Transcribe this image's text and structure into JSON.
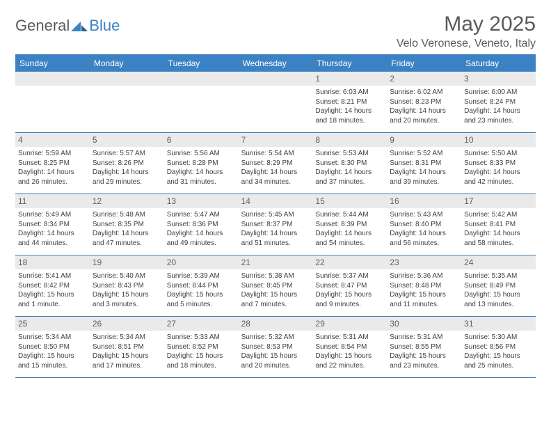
{
  "logo": {
    "general": "General",
    "blue": "Blue"
  },
  "title": "May 2025",
  "location": "Velo Veronese, Veneto, Italy",
  "header_bg": "#3b82c4",
  "border_color": "#3b7ab5",
  "daynum_bg": "#eaeaea",
  "text_color": "#404040",
  "weekdays": [
    "Sunday",
    "Monday",
    "Tuesday",
    "Wednesday",
    "Thursday",
    "Friday",
    "Saturday"
  ],
  "lead_blanks": 4,
  "days": [
    {
      "n": "1",
      "sr": "Sunrise: 6:03 AM",
      "ss": "Sunset: 8:21 PM",
      "d1": "Daylight: 14 hours",
      "d2": "and 18 minutes."
    },
    {
      "n": "2",
      "sr": "Sunrise: 6:02 AM",
      "ss": "Sunset: 8:23 PM",
      "d1": "Daylight: 14 hours",
      "d2": "and 20 minutes."
    },
    {
      "n": "3",
      "sr": "Sunrise: 6:00 AM",
      "ss": "Sunset: 8:24 PM",
      "d1": "Daylight: 14 hours",
      "d2": "and 23 minutes."
    },
    {
      "n": "4",
      "sr": "Sunrise: 5:59 AM",
      "ss": "Sunset: 8:25 PM",
      "d1": "Daylight: 14 hours",
      "d2": "and 26 minutes."
    },
    {
      "n": "5",
      "sr": "Sunrise: 5:57 AM",
      "ss": "Sunset: 8:26 PM",
      "d1": "Daylight: 14 hours",
      "d2": "and 29 minutes."
    },
    {
      "n": "6",
      "sr": "Sunrise: 5:56 AM",
      "ss": "Sunset: 8:28 PM",
      "d1": "Daylight: 14 hours",
      "d2": "and 31 minutes."
    },
    {
      "n": "7",
      "sr": "Sunrise: 5:54 AM",
      "ss": "Sunset: 8:29 PM",
      "d1": "Daylight: 14 hours",
      "d2": "and 34 minutes."
    },
    {
      "n": "8",
      "sr": "Sunrise: 5:53 AM",
      "ss": "Sunset: 8:30 PM",
      "d1": "Daylight: 14 hours",
      "d2": "and 37 minutes."
    },
    {
      "n": "9",
      "sr": "Sunrise: 5:52 AM",
      "ss": "Sunset: 8:31 PM",
      "d1": "Daylight: 14 hours",
      "d2": "and 39 minutes."
    },
    {
      "n": "10",
      "sr": "Sunrise: 5:50 AM",
      "ss": "Sunset: 8:33 PM",
      "d1": "Daylight: 14 hours",
      "d2": "and 42 minutes."
    },
    {
      "n": "11",
      "sr": "Sunrise: 5:49 AM",
      "ss": "Sunset: 8:34 PM",
      "d1": "Daylight: 14 hours",
      "d2": "and 44 minutes."
    },
    {
      "n": "12",
      "sr": "Sunrise: 5:48 AM",
      "ss": "Sunset: 8:35 PM",
      "d1": "Daylight: 14 hours",
      "d2": "and 47 minutes."
    },
    {
      "n": "13",
      "sr": "Sunrise: 5:47 AM",
      "ss": "Sunset: 8:36 PM",
      "d1": "Daylight: 14 hours",
      "d2": "and 49 minutes."
    },
    {
      "n": "14",
      "sr": "Sunrise: 5:45 AM",
      "ss": "Sunset: 8:37 PM",
      "d1": "Daylight: 14 hours",
      "d2": "and 51 minutes."
    },
    {
      "n": "15",
      "sr": "Sunrise: 5:44 AM",
      "ss": "Sunset: 8:39 PM",
      "d1": "Daylight: 14 hours",
      "d2": "and 54 minutes."
    },
    {
      "n": "16",
      "sr": "Sunrise: 5:43 AM",
      "ss": "Sunset: 8:40 PM",
      "d1": "Daylight: 14 hours",
      "d2": "and 56 minutes."
    },
    {
      "n": "17",
      "sr": "Sunrise: 5:42 AM",
      "ss": "Sunset: 8:41 PM",
      "d1": "Daylight: 14 hours",
      "d2": "and 58 minutes."
    },
    {
      "n": "18",
      "sr": "Sunrise: 5:41 AM",
      "ss": "Sunset: 8:42 PM",
      "d1": "Daylight: 15 hours",
      "d2": "and 1 minute."
    },
    {
      "n": "19",
      "sr": "Sunrise: 5:40 AM",
      "ss": "Sunset: 8:43 PM",
      "d1": "Daylight: 15 hours",
      "d2": "and 3 minutes."
    },
    {
      "n": "20",
      "sr": "Sunrise: 5:39 AM",
      "ss": "Sunset: 8:44 PM",
      "d1": "Daylight: 15 hours",
      "d2": "and 5 minutes."
    },
    {
      "n": "21",
      "sr": "Sunrise: 5:38 AM",
      "ss": "Sunset: 8:45 PM",
      "d1": "Daylight: 15 hours",
      "d2": "and 7 minutes."
    },
    {
      "n": "22",
      "sr": "Sunrise: 5:37 AM",
      "ss": "Sunset: 8:47 PM",
      "d1": "Daylight: 15 hours",
      "d2": "and 9 minutes."
    },
    {
      "n": "23",
      "sr": "Sunrise: 5:36 AM",
      "ss": "Sunset: 8:48 PM",
      "d1": "Daylight: 15 hours",
      "d2": "and 11 minutes."
    },
    {
      "n": "24",
      "sr": "Sunrise: 5:35 AM",
      "ss": "Sunset: 8:49 PM",
      "d1": "Daylight: 15 hours",
      "d2": "and 13 minutes."
    },
    {
      "n": "25",
      "sr": "Sunrise: 5:34 AM",
      "ss": "Sunset: 8:50 PM",
      "d1": "Daylight: 15 hours",
      "d2": "and 15 minutes."
    },
    {
      "n": "26",
      "sr": "Sunrise: 5:34 AM",
      "ss": "Sunset: 8:51 PM",
      "d1": "Daylight: 15 hours",
      "d2": "and 17 minutes."
    },
    {
      "n": "27",
      "sr": "Sunrise: 5:33 AM",
      "ss": "Sunset: 8:52 PM",
      "d1": "Daylight: 15 hours",
      "d2": "and 18 minutes."
    },
    {
      "n": "28",
      "sr": "Sunrise: 5:32 AM",
      "ss": "Sunset: 8:53 PM",
      "d1": "Daylight: 15 hours",
      "d2": "and 20 minutes."
    },
    {
      "n": "29",
      "sr": "Sunrise: 5:31 AM",
      "ss": "Sunset: 8:54 PM",
      "d1": "Daylight: 15 hours",
      "d2": "and 22 minutes."
    },
    {
      "n": "30",
      "sr": "Sunrise: 5:31 AM",
      "ss": "Sunset: 8:55 PM",
      "d1": "Daylight: 15 hours",
      "d2": "and 23 minutes."
    },
    {
      "n": "31",
      "sr": "Sunrise: 5:30 AM",
      "ss": "Sunset: 8:56 PM",
      "d1": "Daylight: 15 hours",
      "d2": "and 25 minutes."
    }
  ]
}
